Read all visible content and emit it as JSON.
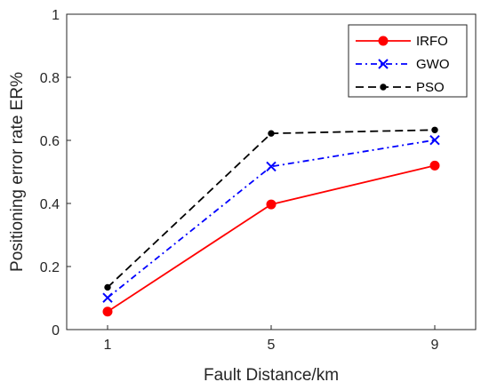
{
  "chart_data": {
    "type": "line",
    "title": "",
    "xlabel": "Fault Distance/km",
    "ylabel": "Positioning error rate ER%",
    "x": [
      1,
      5,
      9
    ],
    "xlim": [
      0,
      10
    ],
    "ylim": [
      0,
      1
    ],
    "xticks": [
      "1",
      "5",
      "9"
    ],
    "yticks": [
      "0",
      "0.2",
      "0.4",
      "0.6",
      "0.8",
      "1"
    ],
    "grid": false,
    "legend_position": "top-right",
    "series": [
      {
        "name": "IRFO",
        "values": [
          0.057,
          0.397,
          0.52
        ],
        "color": "#ff0000",
        "marker": "circle",
        "line_style": "solid"
      },
      {
        "name": "GWO",
        "values": [
          0.101,
          0.517,
          0.601
        ],
        "color": "#0000ff",
        "marker": "x",
        "line_style": "dash-dot"
      },
      {
        "name": "PSO",
        "values": [
          0.134,
          0.622,
          0.633
        ],
        "color": "#000000",
        "marker": "dot",
        "line_style": "dashed"
      }
    ]
  }
}
